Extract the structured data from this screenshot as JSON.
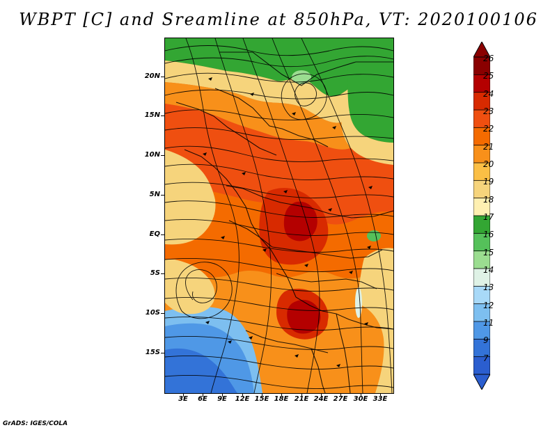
{
  "title": "WBPT [C] and Sreamline at 850hPa, VT: 2020100106",
  "y_axis_labels": [
    "20N",
    "15N",
    "10N",
    "5N",
    "EQ",
    "5S",
    "10S",
    "15S"
  ],
  "x_axis_labels": [
    "3E",
    "6E",
    "9E",
    "12E",
    "15E",
    "18E",
    "21E",
    "24E",
    "27E",
    "30E",
    "33E"
  ],
  "colorbar": {
    "labels": [
      "26",
      "25",
      "24",
      "23",
      "22",
      "21",
      "20",
      "19",
      "18",
      "17",
      "16",
      "15",
      "14",
      "13",
      "12",
      "11",
      "9",
      "7"
    ],
    "colors": [
      "#8a0000",
      "#b40000",
      "#d82a00",
      "#ef4f10",
      "#f46b00",
      "#f8901a",
      "#fbbf45",
      "#f6d47c",
      "#fff0b1",
      "#33a633",
      "#55c15a",
      "#9bdd90",
      "#dff2e6",
      "#a8d9f8",
      "#7dbff0",
      "#4f98e6",
      "#3373d8",
      "#2b5ecf"
    ]
  },
  "footer": "GrADS: IGES/COLA"
}
